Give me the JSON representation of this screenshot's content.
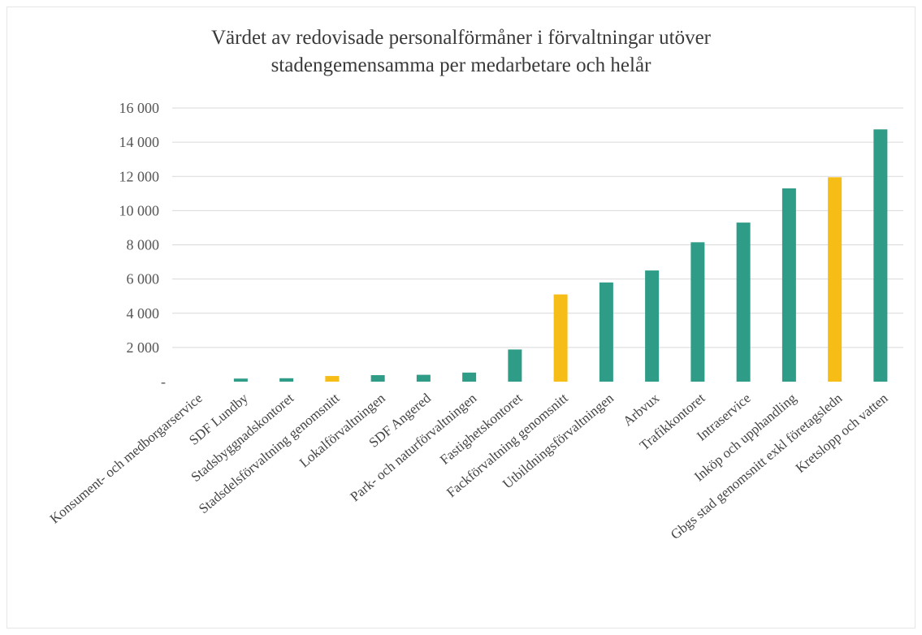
{
  "chart_data": {
    "type": "bar",
    "title": "Värdet av redovisade personalförmåner i förvaltningar utöver stadengemensamma per medarbetare och helår",
    "title_lines": [
      "Värdet av redovisade personalförmåner i förvaltningar utöver",
      "stadengemensamma per medarbetare och helår"
    ],
    "xlabel": "",
    "ylabel": "",
    "ylim": [
      0,
      16000
    ],
    "yticks": [
      0,
      2000,
      4000,
      6000,
      8000,
      10000,
      12000,
      14000,
      16000
    ],
    "ytick_labels": [
      "-",
      "2 000",
      "4 000",
      "6 000",
      "8 000",
      "10 000",
      "12 000",
      "14 000",
      "16 000"
    ],
    "grid": true,
    "categories": [
      "Konsument- och medborgarservice",
      "SDF Lundby",
      "Stadsbyggnadskontoret",
      "Stadsdelsförvaltning genomsnitt",
      "Lokalförvaltningen",
      "SDF Angered",
      "Park- och naturförvaltningen",
      "Fastighetskontoret",
      "Fackförvaltning genomsnitt",
      "Utbildningsförvaltningen",
      "Arbvux",
      "Trafikkontoret",
      "Intraservice",
      "Inköp och upphandling",
      "Gbgs stad genomsnitt exkl företagsledn",
      "Kretslopp och vatten"
    ],
    "values": [
      0,
      180,
      200,
      330,
      380,
      400,
      530,
      1880,
      5100,
      5800,
      6500,
      8150,
      9300,
      11300,
      11950,
      14750
    ],
    "highlight": [
      false,
      false,
      false,
      true,
      false,
      false,
      false,
      false,
      true,
      false,
      false,
      false,
      false,
      false,
      true,
      false
    ],
    "colors": {
      "bar": "#2e9c86",
      "highlight": "#f6bd16"
    }
  }
}
